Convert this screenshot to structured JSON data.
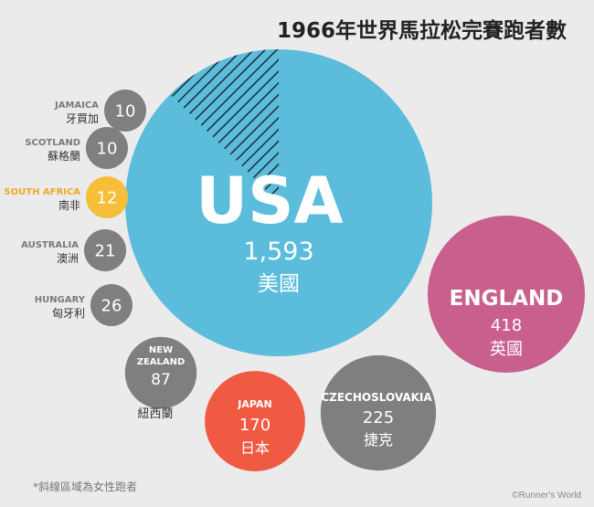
{
  "title": "1966年世界馬拉松完賽跑者數",
  "footnote": "*斜線區域為女性跑者",
  "credit": "©Runner's World",
  "chart_data": {
    "type": "bubble",
    "title": "1966年世界馬拉松完賽跑者數",
    "note": "*斜線區域為女性跑者",
    "bubbles": [
      {
        "country": "USA",
        "value": 1593,
        "value_label": "1,593",
        "local_name": "美國",
        "color": "#5bbcdc",
        "female_share": 0.125
      },
      {
        "country": "ENGLAND",
        "value": 418,
        "value_label": "418",
        "local_name": "英國",
        "color": "#c95f8c"
      },
      {
        "country": "CZECHOSLOVAKIA",
        "value": 225,
        "value_label": "225",
        "local_name": "捷克",
        "color": "#7f7f7f"
      },
      {
        "country": "JAPAN",
        "value": 170,
        "value_label": "170",
        "local_name": "日本",
        "color": "#f15a42"
      },
      {
        "country": "NEW ZEALAND",
        "value": 87,
        "value_label": "87",
        "local_name": "紐西蘭",
        "color": "#7f7f7f"
      },
      {
        "country": "HUNGARY",
        "value": 26,
        "value_label": "26",
        "local_name": "匈牙利",
        "color": "#7f7f7f"
      },
      {
        "country": "AUSTRALIA",
        "value": 21,
        "value_label": "21",
        "local_name": "澳洲",
        "color": "#7f7f7f"
      },
      {
        "country": "SOUTH AFRICA",
        "value": 12,
        "value_label": "12",
        "local_name": "南非",
        "color": "#f7be3a",
        "name_color": "#f0a824"
      },
      {
        "country": "SCOTLAND",
        "value": 10,
        "value_label": "10",
        "local_name": "蘇格蘭",
        "color": "#7f7f7f"
      },
      {
        "country": "JAMAICA",
        "value": 10,
        "value_label": "10",
        "local_name": "牙買加",
        "color": "#7f7f7f"
      }
    ]
  }
}
